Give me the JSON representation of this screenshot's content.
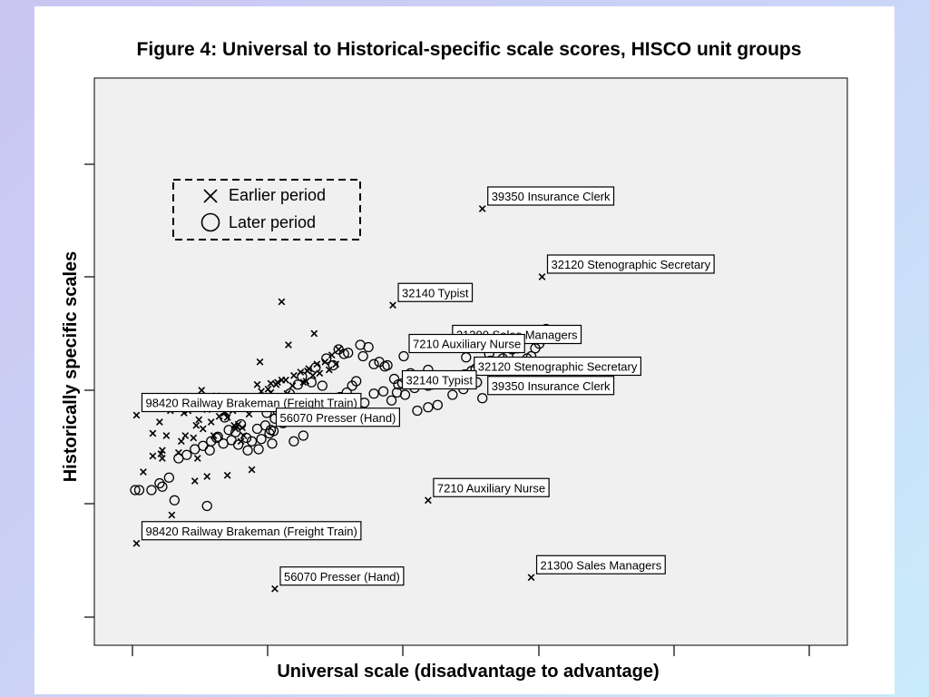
{
  "chart_data": {
    "type": "scatter",
    "title": "Figure 4: Universal to Historical-specific scale scores, HISCO unit groups",
    "xlabel": "Universal scale (disadvantage to advantage)",
    "ylabel": "Historically specific scales",
    "tick_labels_shown": false,
    "grid": false,
    "legend_position": "top-left",
    "legend": [
      {
        "marker": "x",
        "label": "Earlier period"
      },
      {
        "marker": "circle",
        "label": "Later period"
      }
    ],
    "series": [
      {
        "name": "Earlier period",
        "marker": "x",
        "points": [
          [
            0.08,
            0.28
          ],
          [
            0.29,
            -0.1
          ],
          [
            0.22,
            0.47
          ],
          [
            0.22,
            0.4
          ],
          [
            0.21,
            0.44
          ],
          [
            0.15,
            0.42
          ],
          [
            0.2,
            0.72
          ],
          [
            0.25,
            0.6
          ],
          [
            0.15,
            0.62
          ],
          [
            0.28,
            0.82
          ],
          [
            0.38,
            0.8
          ],
          [
            0.41,
            0.82
          ],
          [
            0.49,
            0.74
          ],
          [
            0.51,
            1.0
          ],
          [
            0.55,
            0.83
          ],
          [
            0.62,
            0.95
          ],
          [
            0.7,
            0.76
          ],
          [
            0.75,
            0.69
          ],
          [
            0.76,
            0.66
          ],
          [
            0.78,
            0.7
          ],
          [
            0.8,
            0.55
          ],
          [
            0.81,
            0.67
          ],
          [
            0.82,
            0.6
          ],
          [
            0.48,
            0.4
          ],
          [
            0.46,
            0.2
          ],
          [
            0.34,
            0.45
          ],
          [
            0.47,
            0.69
          ],
          [
            0.85,
            0.89
          ],
          [
            0.99,
            0.94
          ],
          [
            1.02,
            0.98
          ],
          [
            1.02,
            1.06
          ],
          [
            1.06,
            1.05
          ],
          [
            1.1,
            1.09
          ],
          [
            1.01,
            0.95
          ],
          [
            0.99,
            0.86
          ],
          [
            0.86,
            0.79
          ],
          [
            0.55,
            0.24
          ],
          [
            0.7,
            0.25
          ],
          [
            0.88,
            0.3
          ],
          [
            1.2,
            0.93
          ],
          [
            1.14,
            0.97
          ],
          [
            1.15,
            1.4
          ],
          [
            0.92,
            1.05
          ],
          [
            1.1,
            1.78
          ],
          [
            0.94,
            1.25
          ],
          [
            1.34,
            1.5
          ],
          [
            0.6,
            0.6
          ],
          [
            0.72,
            0.85
          ],
          [
            0.66,
            0.89
          ],
          [
            1.26,
            1.07
          ],
          [
            1.18,
            1.04
          ],
          [
            1.05,
            0.89
          ],
          [
            1.12,
            0.86
          ],
          [
            1.29,
            1.17
          ],
          [
            0.36,
            0.55
          ],
          [
            0.39,
            0.6
          ],
          [
            0.45,
            0.58
          ],
          [
            0.52,
            0.66
          ],
          [
            0.58,
            0.72
          ],
          [
            0.64,
            0.77
          ],
          [
            0.68,
            0.8
          ],
          [
            0.74,
            0.82
          ],
          [
            0.85,
            0.9
          ],
          [
            0.9,
            0.92
          ],
          [
            0.95,
            0.99
          ],
          [
            1.0,
            1.01
          ],
          [
            1.07,
            1.07
          ],
          [
            1.13,
            1.09
          ],
          [
            1.19,
            1.13
          ],
          [
            1.24,
            1.16
          ],
          [
            1.3,
            1.19
          ],
          [
            1.36,
            1.23
          ],
          [
            1.42,
            1.25
          ],
          [
            1.47,
            1.31
          ],
          [
            1.52,
            1.36
          ],
          [
            1.28,
            1.08
          ],
          [
            1.33,
            1.13
          ],
          [
            1.38,
            1.15
          ],
          [
            1.45,
            1.18
          ],
          [
            1.5,
            1.23
          ]
        ]
      },
      {
        "name": "Later period",
        "marker": "circle",
        "points": [
          [
            0.02,
            0.12
          ],
          [
            0.05,
            0.12
          ],
          [
            0.14,
            0.12
          ],
          [
            0.22,
            0.15
          ],
          [
            0.31,
            0.03
          ],
          [
            0.55,
            -0.02
          ],
          [
            0.58,
            0.55
          ],
          [
            0.62,
            0.58
          ],
          [
            0.71,
            0.65
          ],
          [
            0.76,
            0.63
          ],
          [
            0.8,
            0.7
          ],
          [
            0.68,
            0.76
          ],
          [
            0.63,
            0.59
          ],
          [
            0.92,
            0.66
          ],
          [
            0.98,
            0.69
          ],
          [
            1.04,
            0.64
          ],
          [
            1.07,
            0.82
          ],
          [
            1.13,
            0.88
          ],
          [
            1.16,
            0.97
          ],
          [
            1.22,
            1.05
          ],
          [
            1.25,
            1.12
          ],
          [
            1.32,
            1.07
          ],
          [
            1.35,
            1.2
          ],
          [
            1.4,
            1.04
          ],
          [
            1.43,
            1.28
          ],
          [
            1.48,
            1.22
          ],
          [
            1.52,
            1.36
          ],
          [
            1.56,
            1.32
          ],
          [
            1.59,
            1.33
          ],
          [
            1.68,
            1.4
          ],
          [
            1.7,
            1.3
          ],
          [
            1.74,
            1.38
          ],
          [
            1.78,
            1.23
          ],
          [
            1.82,
            1.25
          ],
          [
            1.86,
            1.21
          ],
          [
            1.88,
            1.22
          ],
          [
            1.93,
            1.1
          ],
          [
            1.96,
            1.05
          ],
          [
            1.99,
            1.06
          ],
          [
            2.05,
            1.15
          ],
          [
            2.08,
            1.02
          ],
          [
            2.12,
            1.07
          ],
          [
            2.15,
            1.09
          ],
          [
            2.18,
            1.04
          ],
          [
            2.21,
            1.05
          ],
          [
            2.26,
            1.06
          ],
          [
            2.3,
            1.08
          ],
          [
            2.33,
            1.09
          ],
          [
            2.37,
            1.13
          ],
          [
            2.41,
            1.11
          ],
          [
            2.45,
            1.14
          ],
          [
            2.5,
            1.17
          ],
          [
            2.53,
            1.19
          ],
          [
            2.56,
            1.22
          ],
          [
            2.6,
            1.24
          ],
          [
            2.64,
            1.26
          ],
          [
            2.68,
            1.25
          ],
          [
            2.73,
            1.28
          ],
          [
            2.77,
            1.31
          ],
          [
            2.8,
            1.36
          ],
          [
            2.84,
            1.37
          ],
          [
            2.87,
            1.45
          ],
          [
            2.9,
            1.47
          ],
          [
            2.91,
            1.28
          ],
          [
            2.94,
            1.3
          ],
          [
            2.97,
            1.37
          ],
          [
            3.0,
            1.41
          ],
          [
            3.03,
            1.45
          ],
          [
            1.62,
            1.04
          ],
          [
            1.71,
            0.89
          ],
          [
            1.78,
            0.97
          ],
          [
            1.85,
            0.99
          ],
          [
            1.91,
            0.91
          ],
          [
            2.01,
            0.96
          ],
          [
            2.1,
            0.82
          ],
          [
            2.18,
            0.85
          ],
          [
            2.25,
            0.87
          ],
          [
            2.36,
            0.96
          ],
          [
            2.44,
            1.01
          ],
          [
            2.54,
            1.07
          ],
          [
            0.34,
            0.4
          ],
          [
            0.4,
            0.43
          ],
          [
            0.46,
            0.48
          ],
          [
            0.52,
            0.51
          ],
          [
            0.57,
            0.47
          ],
          [
            0.67,
            0.53
          ],
          [
            0.73,
            0.56
          ],
          [
            0.78,
            0.52
          ],
          [
            0.84,
            0.58
          ],
          [
            0.88,
            0.55
          ],
          [
            0.95,
            0.57
          ],
          [
            1.01,
            0.62
          ],
          [
            1.11,
            0.71
          ],
          [
            1.18,
            0.76
          ],
          [
            1.24,
            0.77
          ],
          [
            1.28,
            0.83
          ],
          [
            1.36,
            0.86
          ],
          [
            1.45,
            0.91
          ],
          [
            1.53,
            0.94
          ],
          [
            1.58,
            0.98
          ],
          [
            0.2,
            0.18
          ],
          [
            0.27,
            0.23
          ],
          [
            0.85,
            0.47
          ],
          [
            0.93,
            0.48
          ],
          [
            1.03,
            0.53
          ],
          [
            1.19,
            0.55
          ],
          [
            1.26,
            0.6
          ],
          [
            1.05,
            0.75
          ],
          [
            0.99,
            0.8
          ],
          [
            1.47,
            0.87
          ],
          [
            2.63,
            1.32
          ],
          [
            2.72,
            1.4
          ],
          [
            2.84,
            1.49
          ],
          [
            2.92,
            1.53
          ],
          [
            2.99,
            1.49
          ],
          [
            3.05,
            1.54
          ],
          [
            2.46,
            1.29
          ],
          [
            2.18,
            1.18
          ],
          [
            1.65,
            1.08
          ],
          [
            2.66,
            1.15
          ]
        ]
      }
    ],
    "annotations": [
      {
        "text": "39350 Insurance Clerk",
        "x": 2.58,
        "y": 2.6,
        "marker": "x"
      },
      {
        "text": "32120 Stenographic Secretary",
        "x": 3.02,
        "y": 2.0,
        "marker": "x"
      },
      {
        "text": "32140 Typist",
        "x": 1.92,
        "y": 1.75,
        "marker": "x"
      },
      {
        "text": "21300 Sales Managers",
        "x": 2.32,
        "y": 1.38,
        "marker": "circle"
      },
      {
        "text": "7210 Auxiliary Nurse",
        "x": 2.0,
        "y": 1.3,
        "marker": "circle"
      },
      {
        "text": "32120 Stenographic Secretary",
        "x": 2.48,
        "y": 1.1,
        "marker": "circle"
      },
      {
        "text": "39350 Insurance Clerk",
        "x": 2.58,
        "y": 0.93,
        "marker": "circle"
      },
      {
        "text": "32140 Typist",
        "x": 1.95,
        "y": 0.98,
        "marker": "circle"
      },
      {
        "text": "98420 Railway Brakeman (Freight Train)",
        "x": 0.03,
        "y": 0.78,
        "marker": "x"
      },
      {
        "text": "56070 Presser (Hand)",
        "x": 1.02,
        "y": 0.65,
        "marker": "circle"
      },
      {
        "text": "7210 Auxiliary Nurse",
        "x": 2.18,
        "y": 0.03,
        "marker": "x"
      },
      {
        "text": "98420 Railway Brakeman (Freight Train)",
        "x": 0.03,
        "y": -0.35,
        "marker": "x"
      },
      {
        "text": "21300 Sales Managers",
        "x": 2.94,
        "y": -0.65,
        "marker": "x"
      },
      {
        "text": "56070 Presser (Hand)",
        "x": 1.05,
        "y": -0.75,
        "marker": "x"
      }
    ]
  }
}
